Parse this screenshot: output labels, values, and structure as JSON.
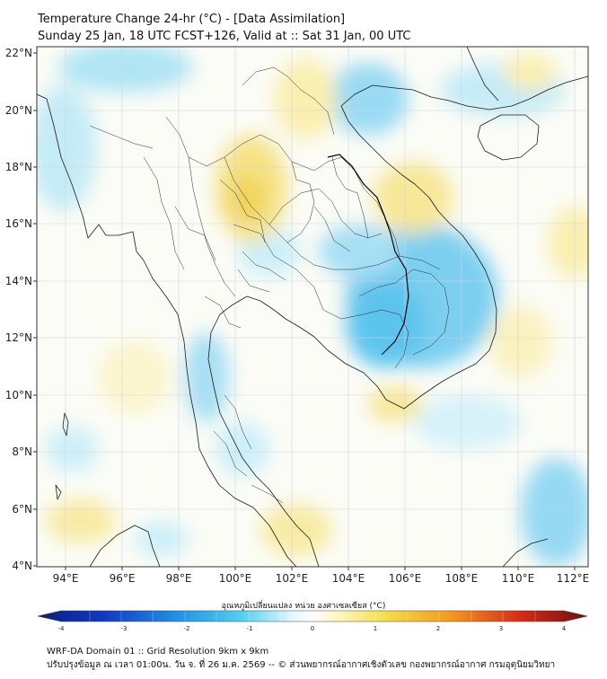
{
  "title": {
    "line1": "Temperature Change 24-hr (°C) - [Data Assimilation]",
    "line2": "Sunday 25 Jan, 18 UTC FCST+126, Valid at :: Sat 31 Jan, 00 UTC"
  },
  "axes": {
    "lon_labels": [
      "94°E",
      "96°E",
      "98°E",
      "100°E",
      "102°E",
      "104°E",
      "106°E",
      "108°E",
      "110°E",
      "112°E"
    ],
    "lat_labels": [
      "22°N",
      "20°N",
      "18°N",
      "16°N",
      "14°N",
      "12°N",
      "10°N",
      "8°N",
      "6°N",
      "4°N"
    ],
    "lon_range": [
      93,
      112.5
    ],
    "lat_range": [
      4,
      22.2
    ]
  },
  "colorbar": {
    "title": "อุณหภูมิเปลี่ยนแปลง หน่วย องศาเซลเซียส (°C)",
    "tick_labels": [
      "-4",
      "-3",
      "-2",
      "-1",
      "0",
      "1",
      "2",
      "3",
      "4"
    ],
    "range": [
      -4,
      4
    ],
    "colors": {
      "cold_end": "#0a1f7a",
      "cool": "#2fb7ea",
      "neutral": "#ffffff",
      "warm": "#f5e04a",
      "hot_end": "#6e1010"
    }
  },
  "footer": {
    "line1": "WRF-DA Domain 01 :: Grid Resolution 9km x 9km",
    "line2": "ปรับปรุงข้อมูล ณ เวลา 01:00น. วัน จ. ที่ 26 ม.ค. 2569 -- © ส่วนพยากรณ์อากาศเชิงตัวเลข กองพยากรณ์อากาศ กรมอุตุนิยมวิทยา"
  }
}
